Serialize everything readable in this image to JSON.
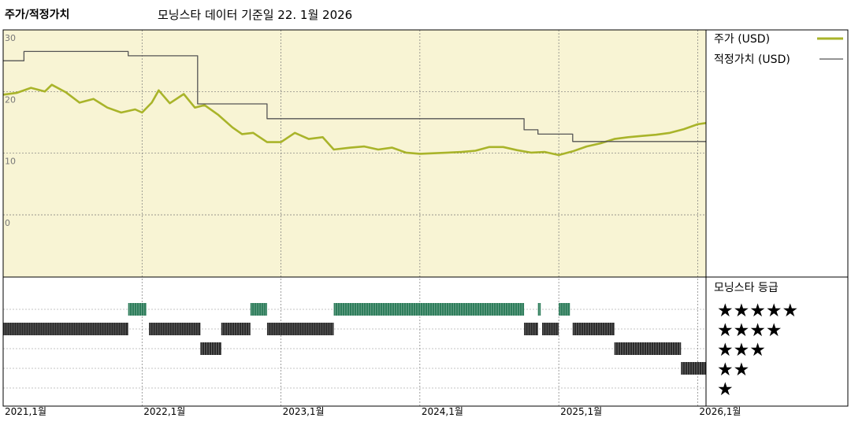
{
  "chart_data": {
    "type": "line",
    "title": "주가/적정가치",
    "subtitle": "모닝스타 데이터 기준일 22. 1월 2026",
    "y_ticks": [
      "30",
      "20",
      "10",
      "0"
    ],
    "ylim": [
      0,
      30
    ],
    "x_ticks": [
      "2021,1월",
      "2022,1월",
      "2023,1월",
      "2024,1월",
      "2025,1월",
      "2026,1월"
    ],
    "xlim": [
      2021.0,
      2026.06
    ],
    "grid": true,
    "legend_position": "right",
    "series": [
      {
        "name": "주가 (USD)",
        "color": "#a9b42a",
        "points": [
          [
            2021.0,
            19.5
          ],
          [
            2021.1,
            19.8
          ],
          [
            2021.2,
            20.6
          ],
          [
            2021.3,
            20.0
          ],
          [
            2021.35,
            21.1
          ],
          [
            2021.45,
            19.9
          ],
          [
            2021.55,
            18.2
          ],
          [
            2021.65,
            18.8
          ],
          [
            2021.75,
            17.4
          ],
          [
            2021.85,
            16.6
          ],
          [
            2021.95,
            17.1
          ],
          [
            2022.0,
            16.6
          ],
          [
            2022.07,
            18.2
          ],
          [
            2022.12,
            20.2
          ],
          [
            2022.2,
            18.1
          ],
          [
            2022.3,
            19.6
          ],
          [
            2022.38,
            17.4
          ],
          [
            2022.45,
            17.8
          ],
          [
            2022.55,
            16.2
          ],
          [
            2022.65,
            14.2
          ],
          [
            2022.72,
            13.1
          ],
          [
            2022.8,
            13.3
          ],
          [
            2022.9,
            11.8
          ],
          [
            2023.0,
            11.8
          ],
          [
            2023.1,
            13.3
          ],
          [
            2023.2,
            12.3
          ],
          [
            2023.3,
            12.6
          ],
          [
            2023.38,
            10.6
          ],
          [
            2023.5,
            10.9
          ],
          [
            2023.6,
            11.1
          ],
          [
            2023.7,
            10.6
          ],
          [
            2023.8,
            10.9
          ],
          [
            2023.9,
            10.1
          ],
          [
            2024.0,
            9.9
          ],
          [
            2024.1,
            10.0
          ],
          [
            2024.2,
            10.1
          ],
          [
            2024.3,
            10.2
          ],
          [
            2024.4,
            10.4
          ],
          [
            2024.5,
            11.0
          ],
          [
            2024.6,
            11.0
          ],
          [
            2024.7,
            10.5
          ],
          [
            2024.8,
            10.1
          ],
          [
            2024.9,
            10.2
          ],
          [
            2025.0,
            9.7
          ],
          [
            2025.1,
            10.3
          ],
          [
            2025.2,
            11.1
          ],
          [
            2025.3,
            11.6
          ],
          [
            2025.4,
            12.3
          ],
          [
            2025.5,
            12.6
          ],
          [
            2025.6,
            12.8
          ],
          [
            2025.7,
            13.0
          ],
          [
            2025.8,
            13.3
          ],
          [
            2025.9,
            13.9
          ],
          [
            2026.0,
            14.7
          ],
          [
            2026.06,
            14.9
          ]
        ]
      },
      {
        "name": "적정가치 (USD)",
        "color": "#555555",
        "points": [
          [
            2021.0,
            25.0
          ],
          [
            2021.15,
            25.0
          ],
          [
            2021.15,
            26.5
          ],
          [
            2021.9,
            26.5
          ],
          [
            2021.9,
            25.8
          ],
          [
            2022.4,
            25.8
          ],
          [
            2022.4,
            18.0
          ],
          [
            2022.9,
            18.0
          ],
          [
            2022.9,
            15.6
          ],
          [
            2024.75,
            15.6
          ],
          [
            2024.75,
            13.8
          ],
          [
            2024.85,
            13.8
          ],
          [
            2024.85,
            13.1
          ],
          [
            2025.1,
            13.1
          ],
          [
            2025.1,
            11.9
          ],
          [
            2026.06,
            11.9
          ]
        ]
      }
    ],
    "rating_panel": {
      "title": "모닝스타 등급",
      "levels": [
        "★★★★★",
        "★★★★",
        "★★★",
        "★★",
        "★"
      ],
      "colors": {
        "5": "#2e7d5b",
        "4": "#2a2a2a",
        "3": "#2a2a2a",
        "2": "#2a2a2a",
        "1": "#2a2a2a"
      },
      "segments": [
        {
          "rating": 4,
          "start": 2021.0,
          "end": 2021.9
        },
        {
          "rating": 5,
          "start": 2021.9,
          "end": 2022.03
        },
        {
          "rating": 4,
          "start": 2022.05,
          "end": 2022.42
        },
        {
          "rating": 3,
          "start": 2022.42,
          "end": 2022.57
        },
        {
          "rating": 4,
          "start": 2022.57,
          "end": 2022.78
        },
        {
          "rating": 5,
          "start": 2022.78,
          "end": 2022.9
        },
        {
          "rating": 4,
          "start": 2022.9,
          "end": 2023.38
        },
        {
          "rating": 5,
          "start": 2023.38,
          "end": 2024.75
        },
        {
          "rating": 4,
          "start": 2024.75,
          "end": 2024.85
        },
        {
          "rating": 5,
          "start": 2024.85,
          "end": 2024.87
        },
        {
          "rating": 4,
          "start": 2024.88,
          "end": 2025.0
        },
        {
          "rating": 5,
          "start": 2025.0,
          "end": 2025.08
        },
        {
          "rating": 4,
          "start": 2025.1,
          "end": 2025.4
        },
        {
          "rating": 3,
          "start": 2025.4,
          "end": 2025.88
        },
        {
          "rating": 2,
          "start": 2025.88,
          "end": 2026.06
        }
      ]
    }
  }
}
